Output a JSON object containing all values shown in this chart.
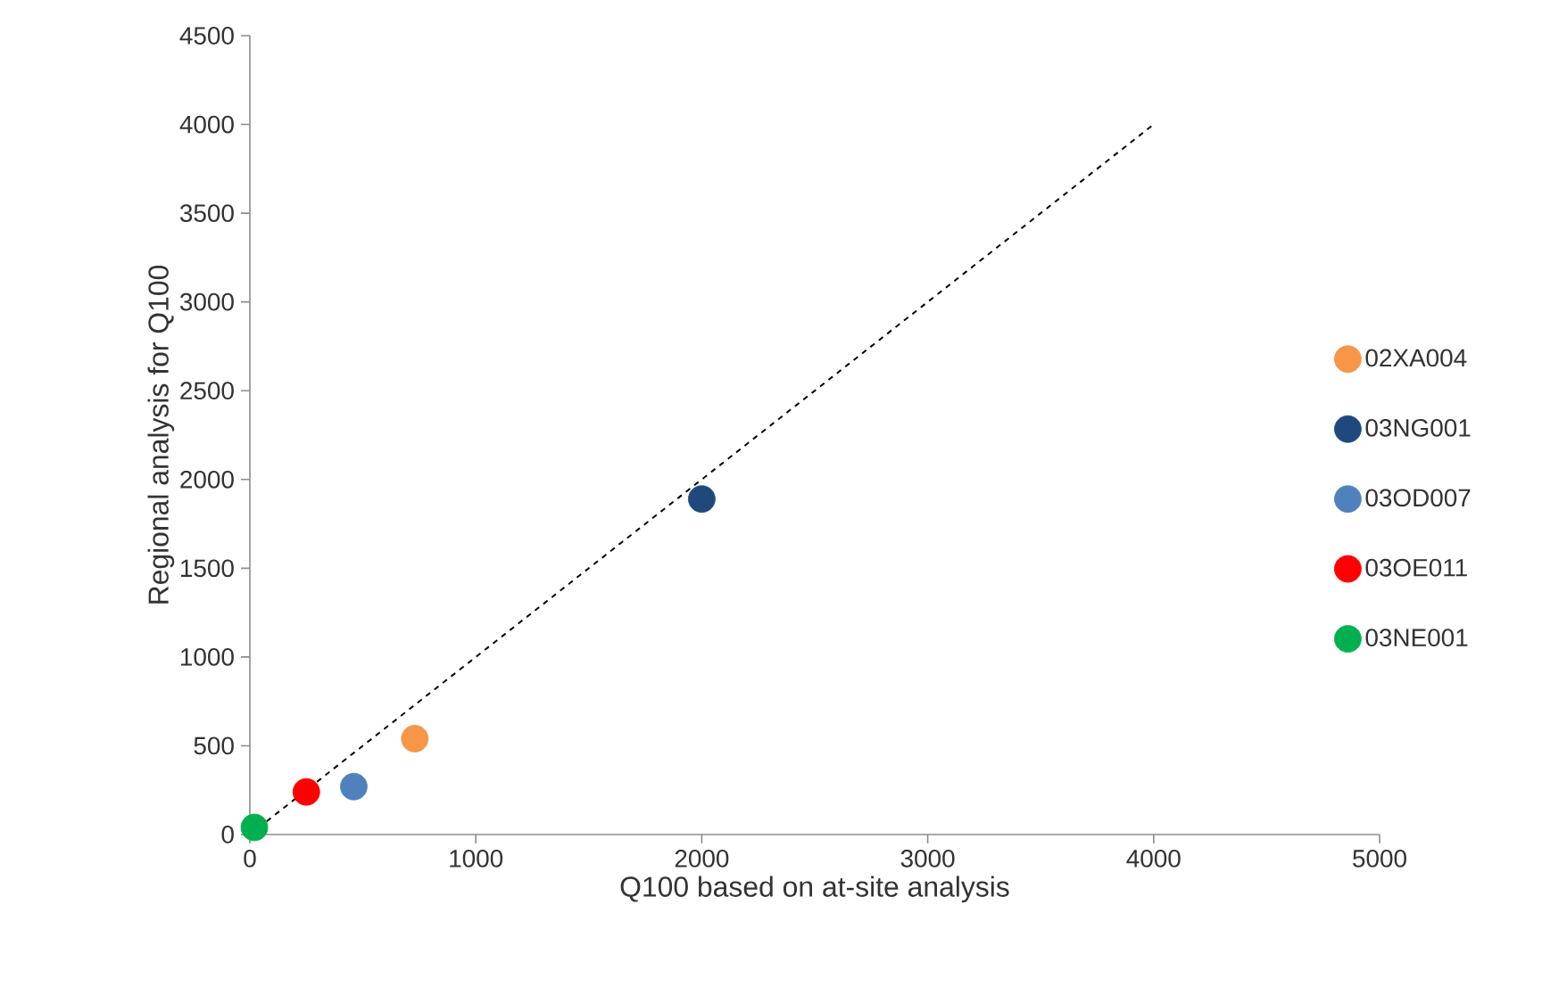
{
  "chart_data": {
    "type": "scatter",
    "xlabel": "Q100 based on at-site analysis",
    "ylabel": "Regional analysis for Q100",
    "xlim": [
      0,
      5000
    ],
    "ylim": [
      0,
      4500
    ],
    "xticks": [
      0,
      1000,
      2000,
      3000,
      4000,
      5000
    ],
    "yticks": [
      0,
      500,
      1000,
      1500,
      2000,
      2500,
      3000,
      3500,
      4000,
      4500
    ],
    "legend": "right",
    "marker": "circle",
    "series": [
      {
        "name": "02XA004",
        "color": "#f79646",
        "x": [
          730
        ],
        "values": [
          540
        ]
      },
      {
        "name": "03NG001",
        "color": "#1f497d",
        "x": [
          2000
        ],
        "values": [
          1890
        ]
      },
      {
        "name": "03OD007",
        "color": "#4f81bd",
        "x": [
          460
        ],
        "values": [
          270
        ]
      },
      {
        "name": "03OE011",
        "color": "#ff0000",
        "x": [
          250
        ],
        "values": [
          240
        ]
      },
      {
        "name": "03NE001",
        "color": "#00b050",
        "x": [
          20
        ],
        "values": [
          40
        ]
      },
      {
        "type": "line",
        "color": "#000000",
        "x": [
          0,
          4000
        ],
        "values": [
          0,
          4000
        ],
        "line_style": "dashed",
        "marker": "none"
      }
    ]
  }
}
